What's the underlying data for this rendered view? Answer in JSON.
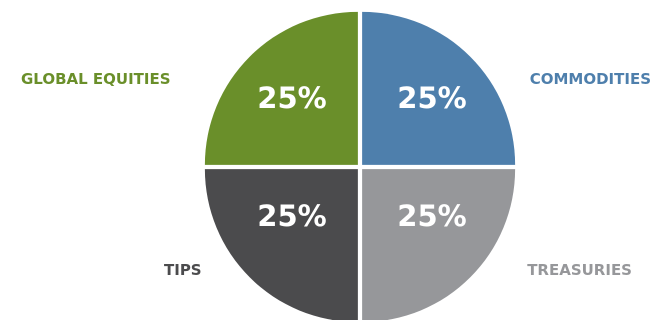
{
  "chart_data": {
    "type": "pie",
    "categories": [
      "COMMODITIES",
      "TREASURIES",
      "TIPS",
      "GLOBAL EQUITIES"
    ],
    "values": [
      25,
      25,
      25,
      25
    ],
    "value_labels": [
      "25%",
      "25%",
      "25%",
      "25%"
    ],
    "colors": [
      "#4e7fac",
      "#96979a",
      "#4b4b4d",
      "#6a8f2a"
    ],
    "label_colors": [
      "#4e7fac",
      "#96979a",
      "#4b4b4d",
      "#6a8f2a"
    ],
    "start": "12 o'clock",
    "direction": "clockwise",
    "legend": "none"
  }
}
